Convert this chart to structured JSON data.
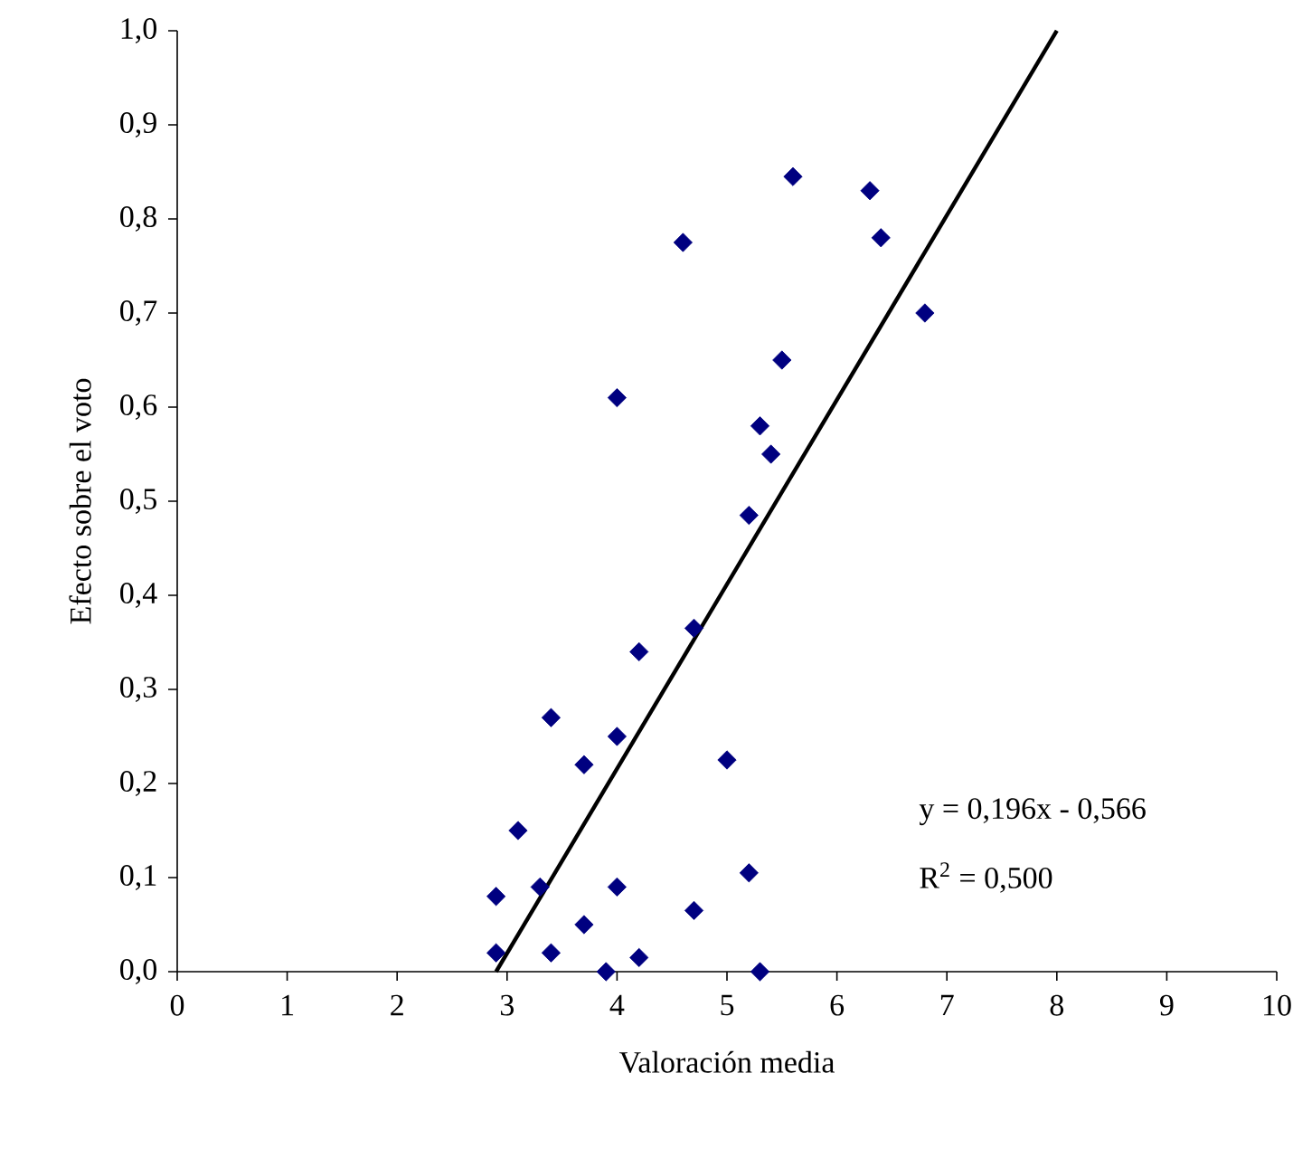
{
  "chart_data": {
    "type": "scatter",
    "xlabel": "Valoración media",
    "ylabel": "Efecto sobre el voto",
    "xlim": [
      0,
      10
    ],
    "ylim": [
      0,
      1
    ],
    "xticks": [
      0,
      1,
      2,
      3,
      4,
      5,
      6,
      7,
      8,
      9,
      10
    ],
    "yticks": [
      {
        "value": 0,
        "label": "0,0"
      },
      {
        "value": 0.1,
        "label": "0,1"
      },
      {
        "value": 0.2,
        "label": "0,2"
      },
      {
        "value": 0.3,
        "label": "0,3"
      },
      {
        "value": 0.4,
        "label": "0,4"
      },
      {
        "value": 0.5,
        "label": "0,5"
      },
      {
        "value": 0.6,
        "label": "0,6"
      },
      {
        "value": 0.7,
        "label": "0,7"
      },
      {
        "value": 0.8,
        "label": "0,8"
      },
      {
        "value": 0.9,
        "label": "0,9"
      },
      {
        "value": 1.0,
        "label": "1,0"
      }
    ],
    "series": [
      {
        "color": "#000080",
        "marker": "diamond",
        "x": [
          2.9,
          2.9,
          3.1,
          3.3,
          3.4,
          3.4,
          3.7,
          3.7,
          4.0,
          4.0,
          4.0,
          3.9,
          4.2,
          4.2,
          4.6,
          4.7,
          4.7,
          5.0,
          5.2,
          5.2,
          5.3,
          5.3,
          5.4,
          5.5,
          5.6,
          6.3,
          6.4,
          6.8
        ],
        "values": [
          0.08,
          0.02,
          0.15,
          0.09,
          0.27,
          0.02,
          0.22,
          0.05,
          0.61,
          0.25,
          0.09,
          0.0,
          0.34,
          0.015,
          0.775,
          0.365,
          0.065,
          0.225,
          0.485,
          0.105,
          0.58,
          0.0,
          0.55,
          0.65,
          0.845,
          0.83,
          0.78,
          0.7
        ]
      },
      {
        "type": "line",
        "color": "#000000",
        "x": [
          2.9,
          8.0
        ],
        "values": [
          0.0,
          1.0
        ]
      }
    ],
    "annotations": [
      "y = 0,196x - 0,566",
      "R$^{2}$ = 0,500"
    ]
  }
}
